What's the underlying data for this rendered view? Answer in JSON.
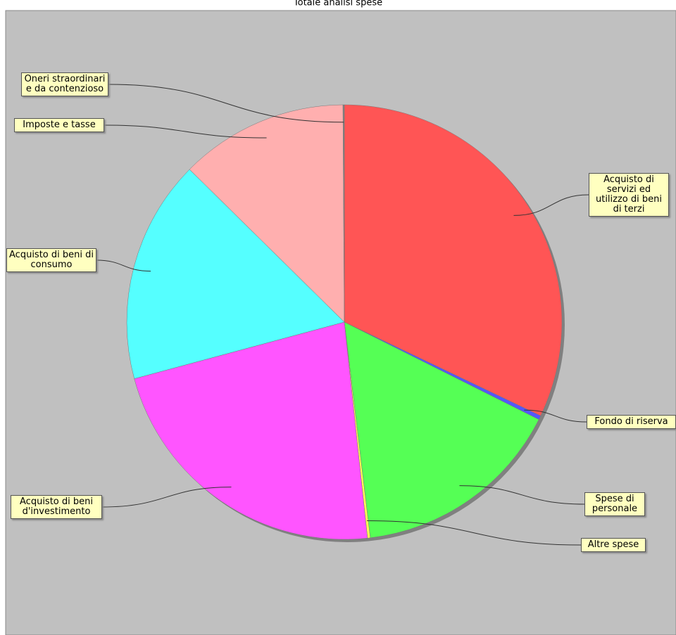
{
  "chart_data": {
    "type": "pie",
    "title": "Totale analisi spese",
    "categories": [
      "Acquisto di servizi ed utilizzo di beni di terzi",
      "Fondo di riserva",
      "Spese di personale",
      "Altre spese",
      "Acquisto di beni d'investimento",
      "Acquisto di beni di consumo",
      "Imposte e tasse",
      "Oneri straordinari e da contenzioso"
    ],
    "values": [
      32.1,
      0.3,
      15.7,
      0.2,
      22.5,
      16.6,
      12.5,
      0.1
    ],
    "colors": [
      "#ff5555",
      "#5555ff",
      "#55ff55",
      "#ffff55",
      "#ff55ff",
      "#55ffff",
      "#ffafaf",
      "#808080"
    ]
  }
}
